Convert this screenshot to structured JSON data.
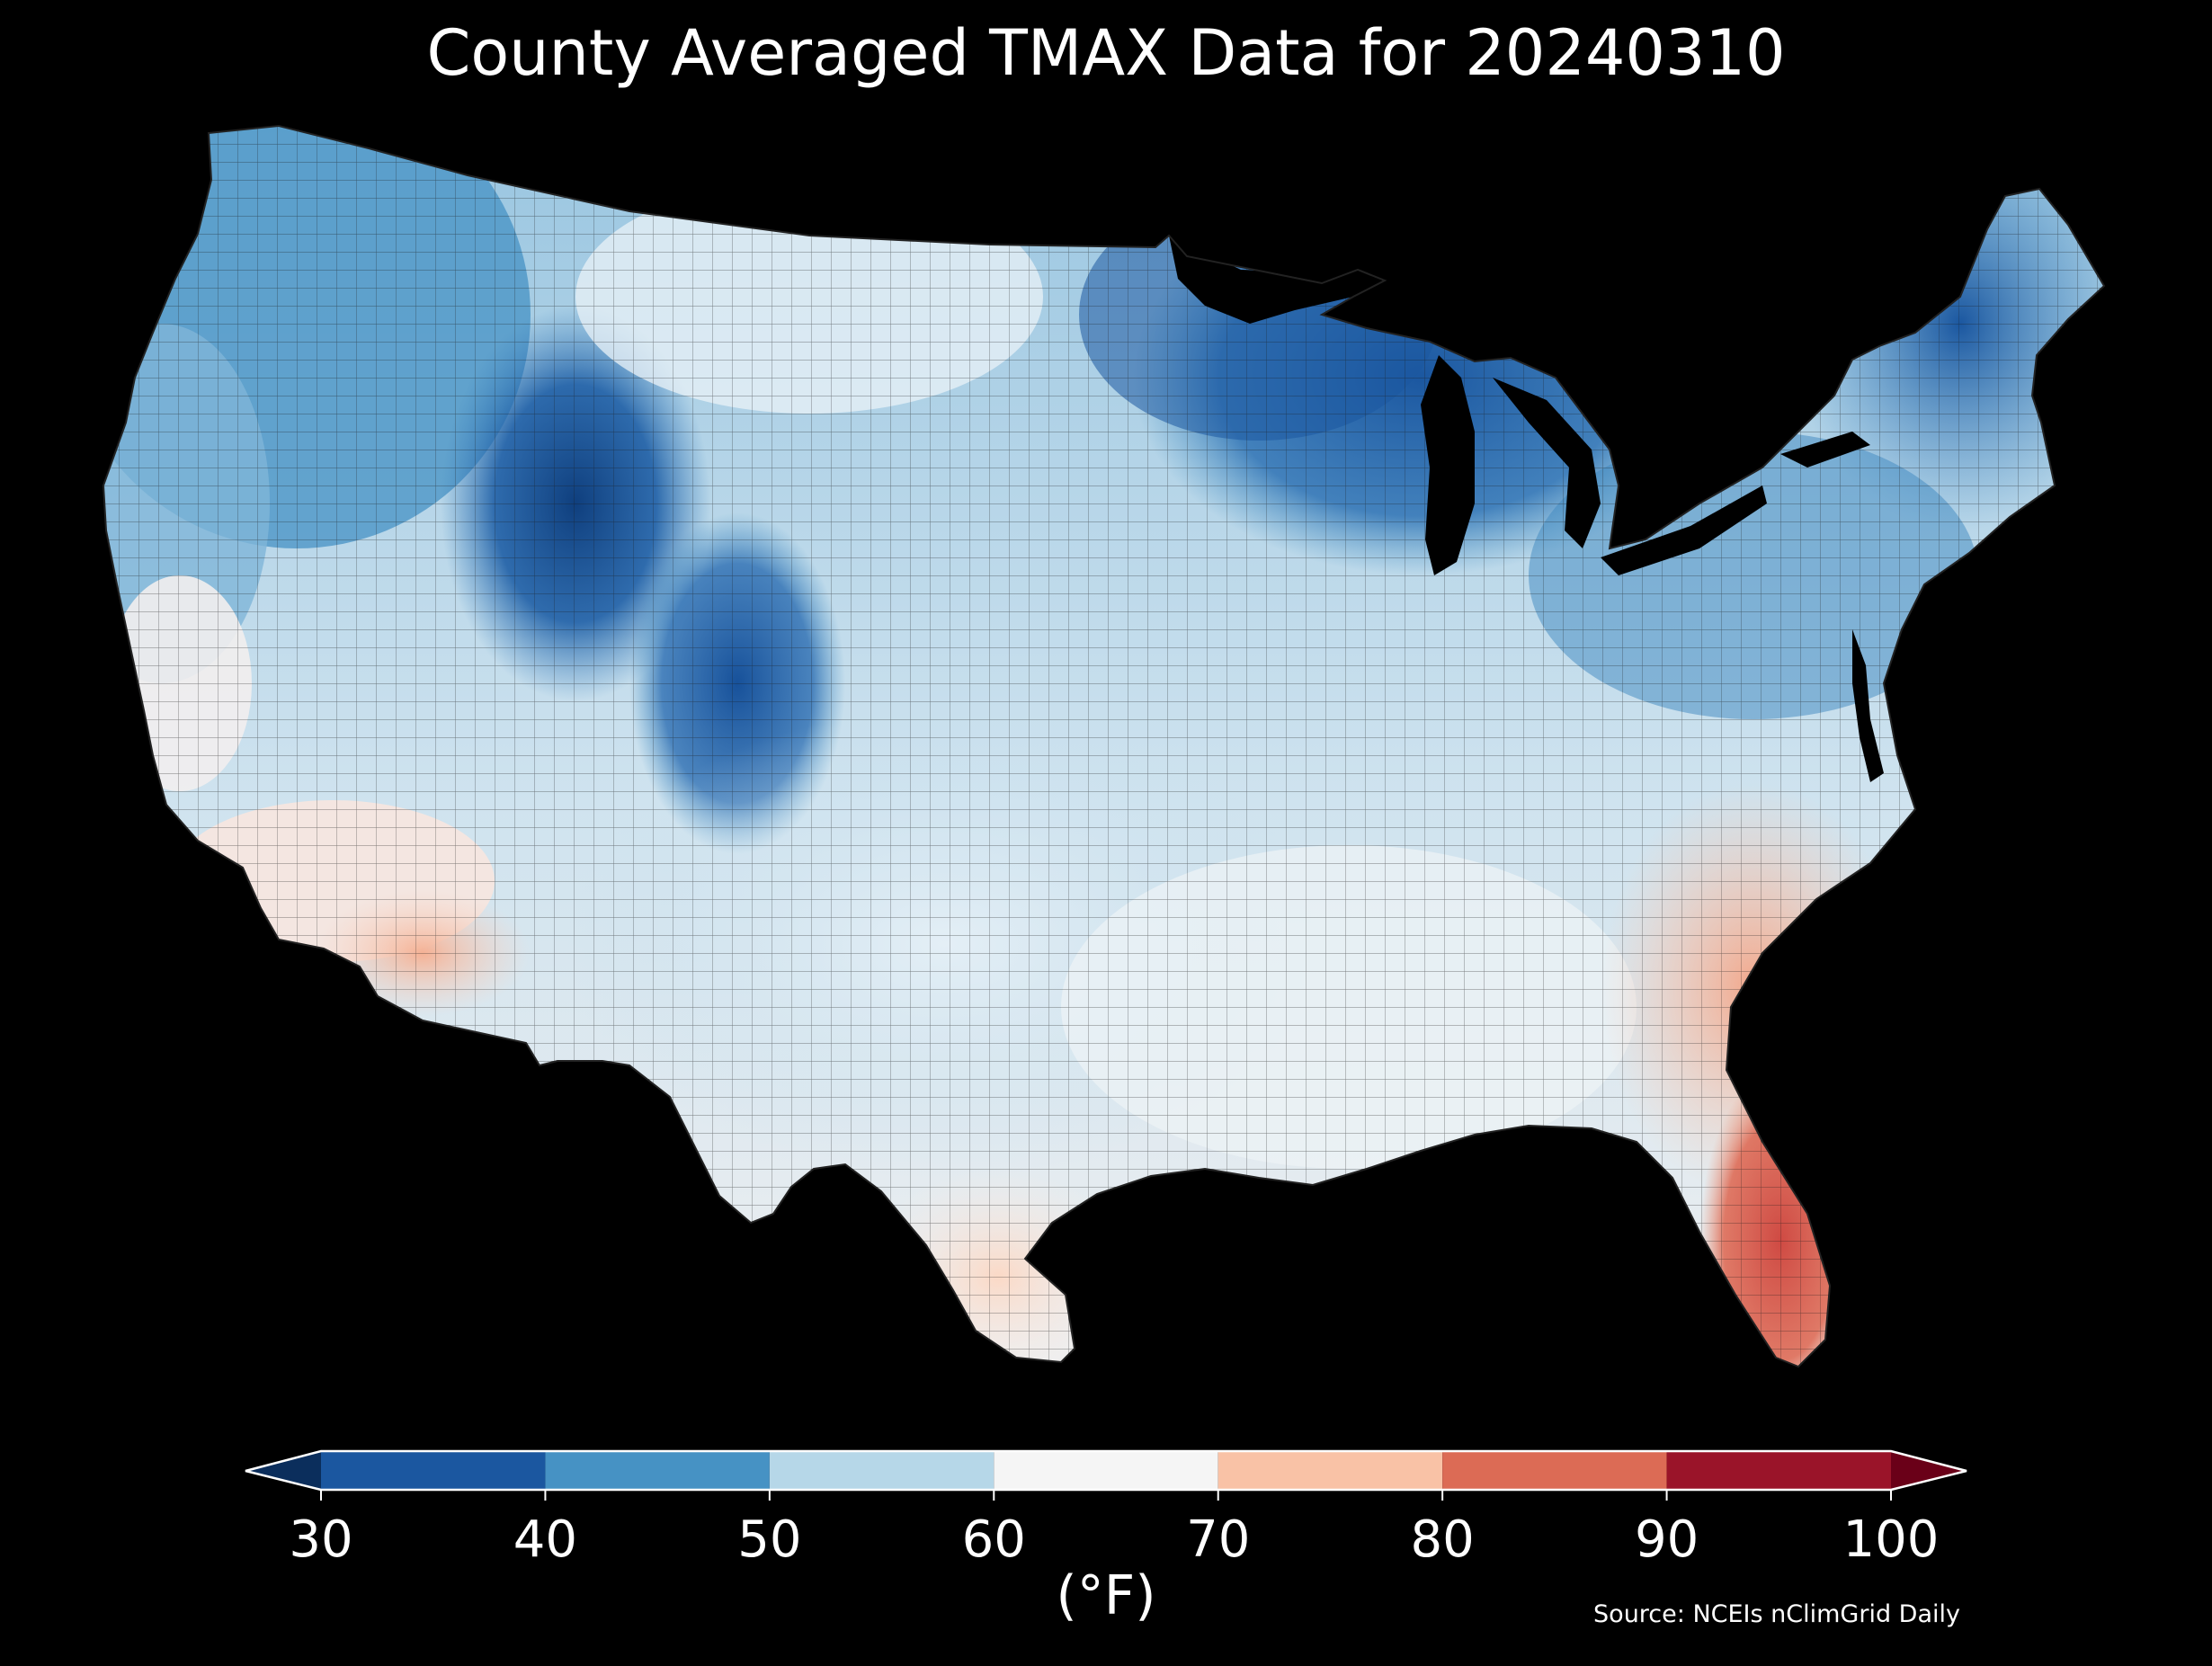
{
  "title": "County Averaged TMAX Data for 20240310",
  "colorbar": {
    "units": "(°F)",
    "ticks": [
      "30",
      "40",
      "50",
      "60",
      "70",
      "80",
      "90",
      "100"
    ],
    "bins": [
      {
        "from": 30,
        "to": 40,
        "color": "#1b57a0"
      },
      {
        "from": 40,
        "to": 50,
        "color": "#4692c4"
      },
      {
        "from": 50,
        "to": 60,
        "color": "#b6d7e8"
      },
      {
        "from": 60,
        "to": 70,
        "color": "#f5f5f5"
      },
      {
        "from": 70,
        "to": 80,
        "color": "#f9c2a6"
      },
      {
        "from": 80,
        "to": 90,
        "color": "#dc6b55"
      },
      {
        "from": 90,
        "to": 100,
        "color": "#9a1429"
      }
    ],
    "under_color": "#0b2e5c",
    "over_color": "#6a0018"
  },
  "source": "Source: NCEIs nClimGrid Daily",
  "map": {
    "region": "Contiguous United States",
    "variable": "TMAX",
    "date": "20240310",
    "background_color": "#000000",
    "county_border_color": "#1a1a1a"
  }
}
